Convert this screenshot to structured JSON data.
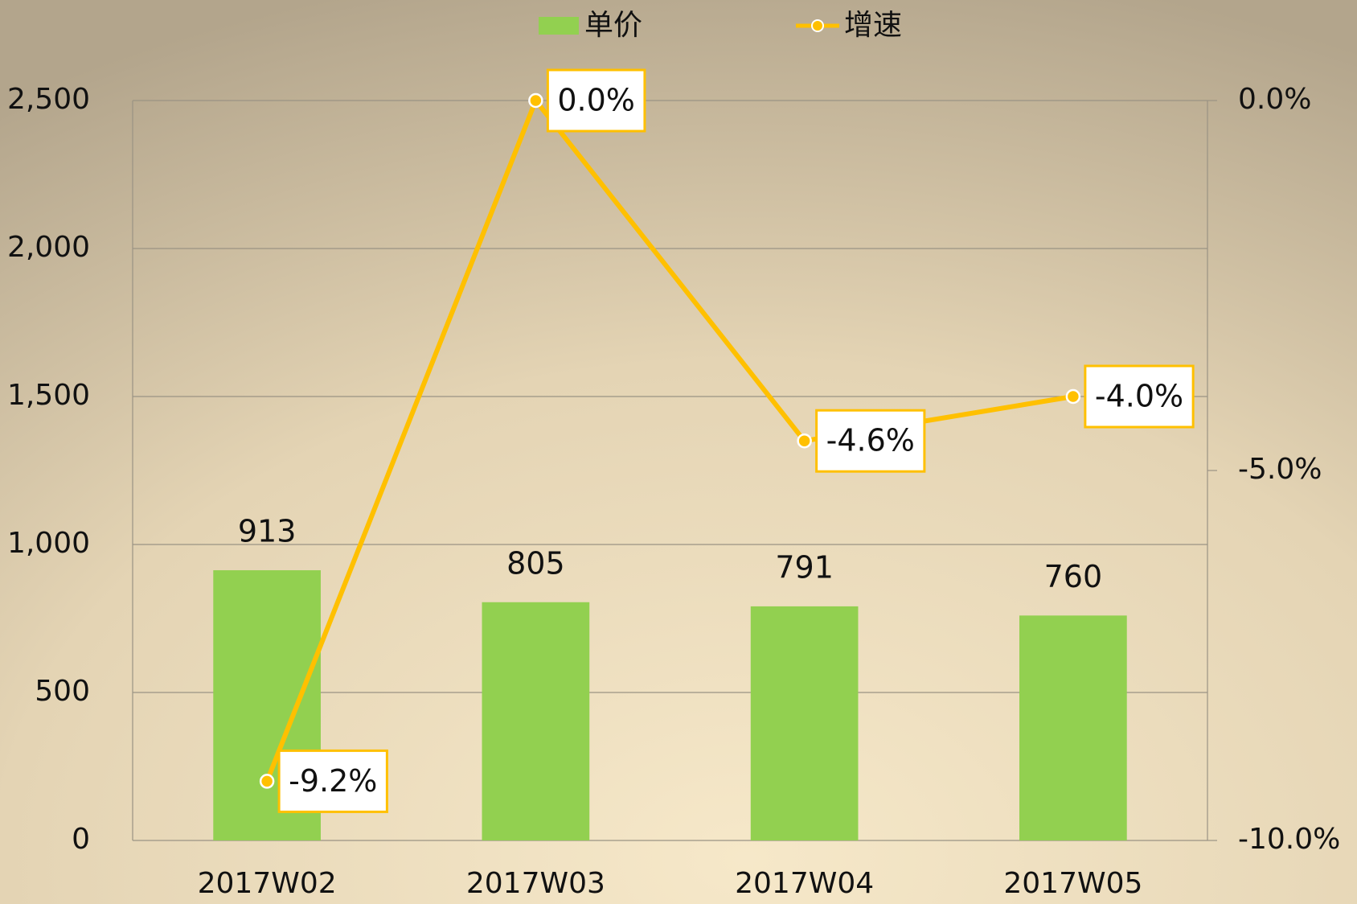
{
  "chart_data": {
    "type": "bar-line",
    "categories": [
      "2017W02",
      "2017W03",
      "2017W04",
      "2017W05"
    ],
    "series": [
      {
        "name": "单价",
        "type": "bar",
        "color": "#92d050",
        "values": [
          913,
          805,
          791,
          760
        ]
      },
      {
        "name": "增速",
        "type": "line",
        "axis": "y2",
        "color": "#ffc000",
        "values": [
          -9.2,
          0.0,
          -4.6,
          -4.0
        ],
        "value_labels": [
          "-9.2%",
          "0.0%",
          "-4.6%",
          "-4.0%"
        ]
      }
    ],
    "ylim": [
      0,
      2500
    ],
    "yticks": [
      0,
      500,
      {
        "value": 1000,
        "label": "1,000"
      },
      {
        "value": 1500,
        "label": "1,500"
      },
      {
        "value": 2000,
        "label": "2,000"
      },
      {
        "value": 2500,
        "label": "2,500"
      }
    ],
    "y2lim": [
      -10,
      0
    ],
    "y2ticks": [
      {
        "value": -10,
        "label": "-10.0%"
      },
      {
        "value": -5,
        "label": "-5.0%"
      },
      {
        "value": 0,
        "label": "0.0%"
      }
    ],
    "grid": true,
    "legend": "top"
  }
}
